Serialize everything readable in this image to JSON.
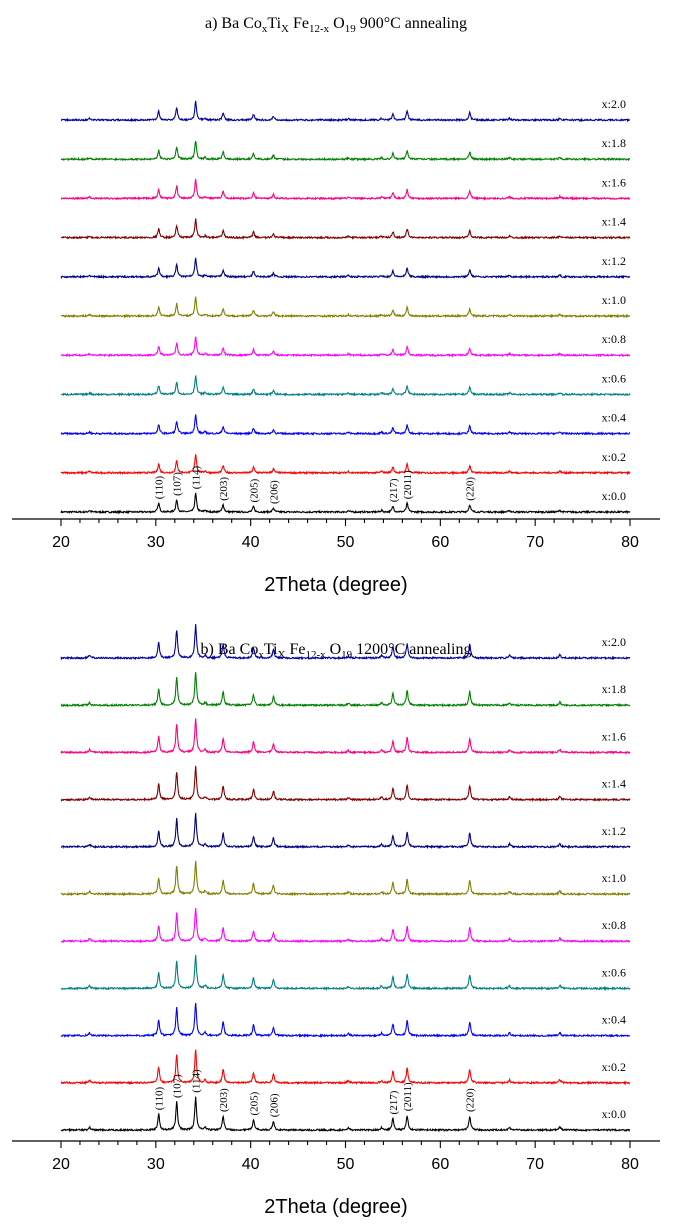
{
  "chart_data": [
    {
      "type": "line",
      "title_parts": [
        "a) Ba Co",
        "x",
        "Ti",
        "X",
        " Fe",
        "12-x",
        " O",
        "19",
        "  900°C annealing"
      ],
      "xlabel": "2Theta (degree)",
      "ylabel": "",
      "xlim": [
        20,
        80
      ],
      "xticks": [
        "20",
        "30",
        "40",
        "50",
        "60",
        "70",
        "80"
      ],
      "yticks": [],
      "grid": false,
      "series": [
        {
          "name": "x:0.0",
          "color": "#000000"
        },
        {
          "name": "x:0.2",
          "color": "#ff0000"
        },
        {
          "name": "x:0.4",
          "color": "#0000ff"
        },
        {
          "name": "x:0.6",
          "color": "#008080"
        },
        {
          "name": "x:0.8",
          "color": "#ff00ff"
        },
        {
          "name": "x:1.0",
          "color": "#808000"
        },
        {
          "name": "x:1.2",
          "color": "#000080"
        },
        {
          "name": "x:1.4",
          "color": "#800000"
        },
        {
          "name": "x:1.6",
          "color": "#ff0080"
        },
        {
          "name": "x:1.8",
          "color": "#008000"
        },
        {
          "name": "x:2.0",
          "color": "#0000a0"
        }
      ],
      "peaks": [
        {
          "x": 23.0,
          "h": 0.07
        },
        {
          "x": 30.3,
          "h": 0.4,
          "label": "(110)"
        },
        {
          "x": 32.2,
          "h": 0.55,
          "label": "(107)"
        },
        {
          "x": 34.2,
          "h": 0.85,
          "label": "(114)"
        },
        {
          "x": 35.2,
          "h": 0.08
        },
        {
          "x": 37.1,
          "h": 0.33,
          "label": "(203)"
        },
        {
          "x": 40.3,
          "h": 0.25,
          "label": "(205)"
        },
        {
          "x": 42.4,
          "h": 0.18,
          "label": "(206)"
        },
        {
          "x": 50.3,
          "h": 0.06
        },
        {
          "x": 53.8,
          "h": 0.07
        },
        {
          "x": 55.0,
          "h": 0.26,
          "label": "(217)"
        },
        {
          "x": 56.5,
          "h": 0.4,
          "label": "(2011)"
        },
        {
          "x": 63.1,
          "h": 0.33,
          "label": "(220)"
        },
        {
          "x": 67.3,
          "h": 0.07
        },
        {
          "x": 72.6,
          "h": 0.08
        }
      ]
    },
    {
      "type": "line",
      "title_parts": [
        "b) Ba Co",
        "x",
        "Ti",
        "X",
        " Fe",
        "12-x",
        " O",
        "19",
        "  1200°C annealing"
      ],
      "xlabel": "2Theta (degree)",
      "ylabel": "",
      "xlim": [
        20,
        80
      ],
      "xticks": [
        "20",
        "30",
        "40",
        "50",
        "60",
        "70",
        "80"
      ],
      "yticks": [],
      "grid": false,
      "series": [
        {
          "name": "x:0.0",
          "color": "#000000"
        },
        {
          "name": "x:0.2",
          "color": "#ff0000"
        },
        {
          "name": "x:0.4",
          "color": "#0000ff"
        },
        {
          "name": "x:0.6",
          "color": "#008080"
        },
        {
          "name": "x:0.8",
          "color": "#ff00ff"
        },
        {
          "name": "x:1.0",
          "color": "#808000"
        },
        {
          "name": "x:1.2",
          "color": "#000080"
        },
        {
          "name": "x:1.4",
          "color": "#800000"
        },
        {
          "name": "x:1.6",
          "color": "#ff0080"
        },
        {
          "name": "x:1.8",
          "color": "#008000"
        },
        {
          "name": "x:2.0",
          "color": "#0000a0"
        }
      ],
      "peaks": [
        {
          "x": 23.0,
          "h": 0.08
        },
        {
          "x": 30.3,
          "h": 0.45,
          "label": "(110)"
        },
        {
          "x": 32.2,
          "h": 0.8,
          "label": "(107)"
        },
        {
          "x": 34.2,
          "h": 0.95,
          "label": "(114)"
        },
        {
          "x": 35.2,
          "h": 0.08
        },
        {
          "x": 37.1,
          "h": 0.4,
          "label": "(203)"
        },
        {
          "x": 40.3,
          "h": 0.3,
          "label": "(205)"
        },
        {
          "x": 42.4,
          "h": 0.25,
          "label": "(206)"
        },
        {
          "x": 50.3,
          "h": 0.06
        },
        {
          "x": 53.8,
          "h": 0.07
        },
        {
          "x": 55.0,
          "h": 0.33,
          "label": "(217)"
        },
        {
          "x": 56.5,
          "h": 0.42,
          "label": "(2011)"
        },
        {
          "x": 63.1,
          "h": 0.4,
          "label": "(220)"
        },
        {
          "x": 67.3,
          "h": 0.08
        },
        {
          "x": 72.6,
          "h": 0.09
        }
      ]
    }
  ]
}
